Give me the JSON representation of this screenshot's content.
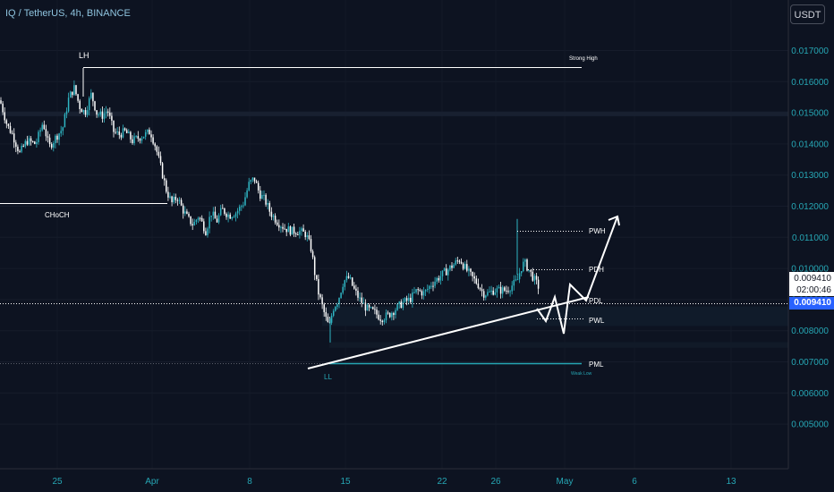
{
  "header": {
    "symbol": "IQ / TetherUS, 4h, BINANCE",
    "currency_button": "USDT"
  },
  "price_labels": {
    "last_price": "0.009410",
    "countdown": "02:00:46",
    "current_price": "0.009410"
  },
  "colors": {
    "background": "#0d1321",
    "candle": "#26a6b4",
    "annotation": "#ffffff",
    "grid": "#1a2030"
  },
  "chart_data": {
    "type": "candlestick",
    "y_axis": {
      "ticks": [
        "0.017000",
        "0.016000",
        "0.015000",
        "0.014000",
        "0.013000",
        "0.012000",
        "0.011000",
        "0.010000",
        "0.009000",
        "0.008000",
        "0.007000",
        "0.006000",
        "0.005000"
      ],
      "tick_values": [
        0.017,
        0.016,
        0.015,
        0.014,
        0.013,
        0.012,
        0.011,
        0.01,
        0.009,
        0.008,
        0.007,
        0.006,
        0.005
      ]
    },
    "x_axis": {
      "ticks": [
        "25",
        "Apr",
        "8",
        "15",
        "22",
        "26",
        "May",
        "6",
        "13"
      ]
    },
    "price_path": [
      [
        0,
        0.0154
      ],
      [
        8,
        0.0146
      ],
      [
        14,
        0.0143
      ],
      [
        22,
        0.0137
      ],
      [
        30,
        0.0141
      ],
      [
        40,
        0.014
      ],
      [
        48,
        0.0147
      ],
      [
        55,
        0.0139
      ],
      [
        62,
        0.0142
      ],
      [
        70,
        0.0145
      ],
      [
        77,
        0.0155
      ],
      [
        83,
        0.0158
      ],
      [
        89,
        0.0152
      ],
      [
        95,
        0.015
      ],
      [
        102,
        0.0156
      ],
      [
        108,
        0.015
      ],
      [
        114,
        0.0149
      ],
      [
        120,
        0.0151
      ],
      [
        127,
        0.0144
      ],
      [
        133,
        0.0143
      ],
      [
        140,
        0.0144
      ],
      [
        148,
        0.0141
      ],
      [
        155,
        0.0142
      ],
      [
        162,
        0.0143
      ],
      [
        168,
        0.0144
      ],
      [
        174,
        0.0139
      ],
      [
        180,
        0.0132
      ],
      [
        186,
        0.0125
      ],
      [
        192,
        0.0121
      ],
      [
        198,
        0.0123
      ],
      [
        204,
        0.0119
      ],
      [
        210,
        0.0116
      ],
      [
        216,
        0.0114
      ],
      [
        222,
        0.0117
      ],
      [
        230,
        0.0112
      ],
      [
        236,
        0.0118
      ],
      [
        242,
        0.0115
      ],
      [
        248,
        0.0119
      ],
      [
        256,
        0.0117
      ],
      [
        264,
        0.0118
      ],
      [
        272,
        0.0121
      ],
      [
        278,
        0.0127
      ],
      [
        284,
        0.0129
      ],
      [
        290,
        0.0124
      ],
      [
        296,
        0.0122
      ],
      [
        302,
        0.0118
      ],
      [
        310,
        0.0115
      ],
      [
        318,
        0.0113
      ],
      [
        326,
        0.0112
      ],
      [
        334,
        0.0112
      ],
      [
        342,
        0.0111
      ],
      [
        348,
        0.0106
      ],
      [
        352,
        0.0098
      ],
      [
        356,
        0.0092
      ],
      [
        360,
        0.0088
      ],
      [
        364,
        0.0084
      ],
      [
        368,
        0.0081
      ],
      [
        372,
        0.0087
      ],
      [
        378,
        0.009
      ],
      [
        384,
        0.0096
      ],
      [
        390,
        0.0097
      ],
      [
        396,
        0.0093
      ],
      [
        402,
        0.009
      ],
      [
        410,
        0.0087
      ],
      [
        418,
        0.0086
      ],
      [
        426,
        0.0084
      ],
      [
        434,
        0.0085
      ],
      [
        442,
        0.0087
      ],
      [
        450,
        0.0089
      ],
      [
        458,
        0.009
      ],
      [
        466,
        0.0093
      ],
      [
        474,
        0.0092
      ],
      [
        482,
        0.0095
      ],
      [
        490,
        0.0097
      ],
      [
        498,
        0.0099
      ],
      [
        506,
        0.0101
      ],
      [
        514,
        0.0103
      ],
      [
        520,
        0.01
      ],
      [
        528,
        0.0097
      ],
      [
        534,
        0.0095
      ],
      [
        540,
        0.0092
      ],
      [
        546,
        0.0092
      ],
      [
        552,
        0.0093
      ],
      [
        558,
        0.0093
      ],
      [
        566,
        0.0093
      ],
      [
        574,
        0.0095
      ],
      [
        578,
        0.0096
      ],
      [
        582,
        0.01
      ],
      [
        586,
        0.0102
      ],
      [
        590,
        0.01
      ],
      [
        596,
        0.0097
      ],
      [
        602,
        0.0094
      ]
    ],
    "levels": [
      {
        "label": "Strong High",
        "price": 0.01647
      },
      {
        "label": "PWH",
        "price": 0.011593
      },
      {
        "label": "PDH",
        "price": 0.010405
      },
      {
        "label": "PDL",
        "price": 0.009441
      },
      {
        "label": "PWL",
        "price": 0.008934
      },
      {
        "label": "PML",
        "price": 0.007635
      },
      {
        "label": "Weak Low",
        "price": 0.007635
      }
    ],
    "annotations": [
      "LH",
      "CHoCH",
      "LL"
    ]
  }
}
